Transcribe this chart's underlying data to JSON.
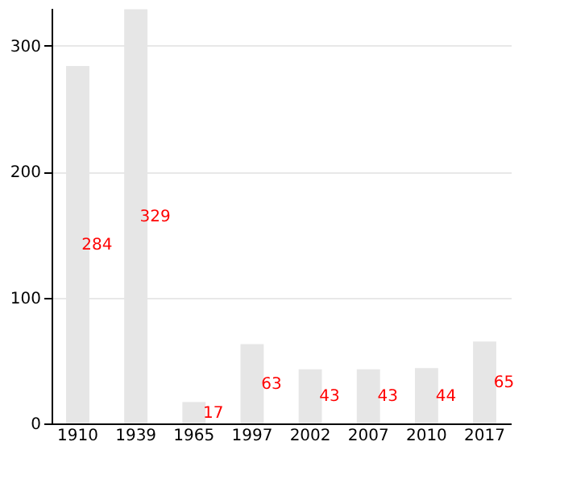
{
  "chart_data": {
    "type": "bar",
    "categories": [
      "1910",
      "1939",
      "1965",
      "1997",
      "2002",
      "2007",
      "2010",
      "2017"
    ],
    "values": [
      284,
      329,
      17,
      63,
      43,
      43,
      44,
      65
    ],
    "color": "#e6e6e6",
    "ylim": [
      0,
      330
    ],
    "yticks": [
      0,
      100,
      200,
      300
    ],
    "grid": "y",
    "data_labels": true
  }
}
